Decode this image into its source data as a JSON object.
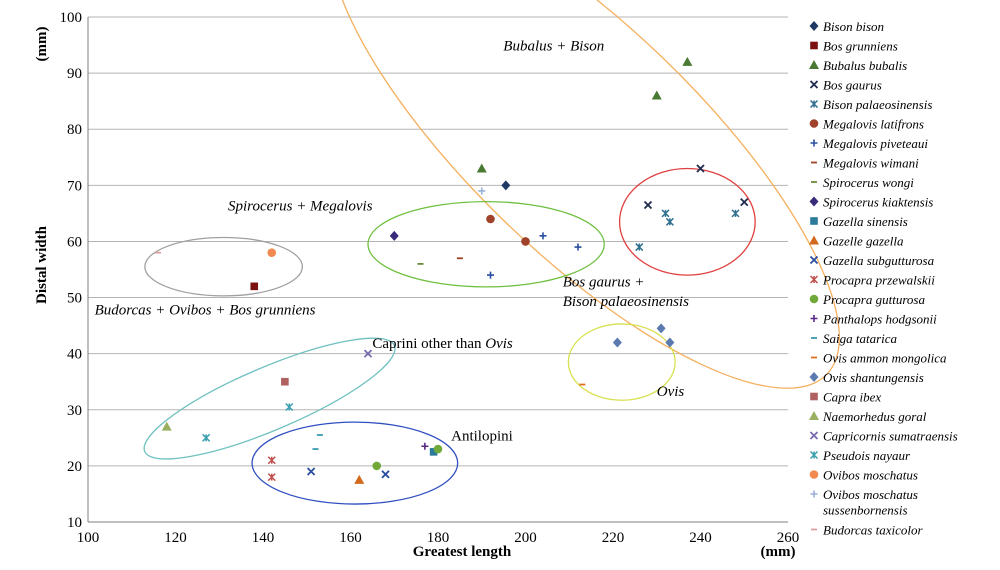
{
  "chart_data": {
    "type": "scatter",
    "xlabel": "Greatest length",
    "xunit": "(mm)",
    "ylabel": "Distal width",
    "yunit": "(mm)",
    "xlim": [
      100,
      260
    ],
    "ylim": [
      10,
      100
    ],
    "xticks": [
      100,
      120,
      140,
      160,
      180,
      200,
      220,
      240,
      260
    ],
    "yticks": [
      10,
      20,
      30,
      40,
      50,
      60,
      70,
      80,
      90,
      100
    ],
    "grid": "horizontal",
    "legend_position": "right",
    "series": [
      {
        "name": "Bison bison",
        "color": "#1f3864",
        "marker": "diamond",
        "points": [
          [
            195.5,
            70
          ]
        ]
      },
      {
        "name": "Bos grunniens",
        "color": "#7b1010",
        "marker": "square",
        "points": [
          [
            138,
            52
          ]
        ]
      },
      {
        "name": "Bubalus bubalis",
        "color": "#4a7a32",
        "marker": "triangle",
        "points": [
          [
            190,
            73
          ],
          [
            230,
            86
          ],
          [
            237,
            92
          ]
        ]
      },
      {
        "name": "Bos gaurus",
        "color": "#1f2a4f",
        "marker": "x",
        "points": [
          [
            228,
            66.5
          ],
          [
            240,
            73
          ],
          [
            250,
            67
          ]
        ]
      },
      {
        "name": "Bison palaeosinensis",
        "color": "#2f6f8f",
        "marker": "starx",
        "points": [
          [
            226,
            59
          ],
          [
            232,
            65
          ],
          [
            233,
            63.5
          ],
          [
            248,
            65
          ]
        ]
      },
      {
        "name": "Megalovis latifrons",
        "color": "#a0412a",
        "marker": "circle",
        "points": [
          [
            192,
            64
          ],
          [
            200,
            60
          ]
        ]
      },
      {
        "name": "Megalovis piveteaui",
        "color": "#2a4ea0",
        "marker": "plus",
        "points": [
          [
            192,
            54
          ],
          [
            204,
            61
          ],
          [
            212,
            59
          ]
        ]
      },
      {
        "name": "Megalovis wimani",
        "color": "#a0412a",
        "marker": "dash",
        "points": [
          [
            185,
            57
          ]
        ]
      },
      {
        "name": "Spirocerus wongi",
        "color": "#6a8a3a",
        "marker": "dash",
        "points": [
          [
            176,
            56
          ]
        ]
      },
      {
        "name": "Spirocerus kiaktensis",
        "color": "#3a2a7a",
        "marker": "diamond",
        "points": [
          [
            170,
            61
          ]
        ]
      },
      {
        "name": "Gazella sinensis",
        "color": "#2a7a9a",
        "marker": "square",
        "points": [
          [
            179,
            22.5
          ]
        ]
      },
      {
        "name": "Gazelle gazella",
        "color": "#d2691e",
        "marker": "triangle",
        "points": [
          [
            162,
            17.5
          ]
        ]
      },
      {
        "name": "Gazella subgutturosa",
        "color": "#2a4ea0",
        "marker": "x",
        "points": [
          [
            151,
            19
          ],
          [
            168,
            18.5
          ]
        ]
      },
      {
        "name": "Procapra przewalskii",
        "color": "#c0504d",
        "marker": "starx",
        "points": [
          [
            142,
            21
          ],
          [
            142,
            18
          ]
        ]
      },
      {
        "name": "Procapra gutturosa",
        "color": "#70a83a",
        "marker": "circle",
        "points": [
          [
            166,
            20
          ],
          [
            180,
            23
          ]
        ]
      },
      {
        "name": "Panthalops hodgsonii",
        "color": "#5a2a8a",
        "marker": "plus",
        "points": [
          [
            177,
            23.5
          ]
        ]
      },
      {
        "name": "Saiga tatarica",
        "color": "#3a9ab0",
        "marker": "dash",
        "points": [
          [
            152,
            23
          ],
          [
            153,
            25.5
          ]
        ]
      },
      {
        "name": "Ovis ammon mongolica",
        "color": "#e07020",
        "marker": "dash",
        "points": [
          [
            213,
            34.5
          ]
        ]
      },
      {
        "name": "Ovis shantungensis",
        "color": "#5a7ab0",
        "marker": "diamond",
        "points": [
          [
            221,
            42
          ],
          [
            231,
            44.5
          ],
          [
            233,
            42
          ]
        ]
      },
      {
        "name": "Capra ibex",
        "color": "#b06060",
        "marker": "square",
        "points": [
          [
            145,
            35
          ]
        ]
      },
      {
        "name": "Naemorhedus goral",
        "color": "#9ab060",
        "marker": "triangle",
        "points": [
          [
            118,
            27
          ]
        ]
      },
      {
        "name": "Capricornis sumatraensis",
        "color": "#7a6ab0",
        "marker": "x",
        "points": [
          [
            164,
            40
          ]
        ]
      },
      {
        "name": "Pseudois nayaur",
        "color": "#3aa0b0",
        "marker": "starx",
        "points": [
          [
            127,
            25
          ],
          [
            146,
            30.5
          ]
        ]
      },
      {
        "name": "Ovibos moschatus",
        "color": "#f08a50",
        "marker": "circle",
        "points": [
          [
            142,
            58
          ]
        ]
      },
      {
        "name": "Ovibos moschatus sussenbornensis",
        "color": "#9ab0d8",
        "marker": "plus",
        "points": [
          [
            190,
            69
          ]
        ]
      },
      {
        "name": "Budorcas taxicolor",
        "color": "#e0a0a0",
        "marker": "dash",
        "points": [
          [
            116,
            58
          ]
        ]
      }
    ],
    "groups": [
      {
        "label_parts": [
          {
            "text": "Bubalus + Bison",
            "italic": true
          }
        ],
        "color": "#f5b060",
        "ellipse": {
          "cx": 213.5,
          "cy": 78,
          "rx": 26,
          "ry": 60,
          "angle_deg": -46
        },
        "label_anchor": [
          218,
          94
        ],
        "label_align": "end"
      },
      {
        "label_parts": [
          {
            "text": "Spirocerus + Megalovis",
            "italic": true
          }
        ],
        "color": "#70c040",
        "ellipse": {
          "cx": 191,
          "cy": 59.5,
          "rx": 27,
          "ry": 7.6,
          "angle_deg": 0
        },
        "label_anchor": [
          132,
          65.5
        ],
        "label_align": "start"
      },
      {
        "label_parts": [
          {
            "text": "Bos gaurus +",
            "italic": true
          }
        ],
        "color": "#e04040",
        "ellipse": {
          "cx": 237,
          "cy": 63.5,
          "rx": 15.5,
          "ry": 9.5,
          "angle_deg": 0
        },
        "label_anchor": [
          208.5,
          52
        ],
        "label_align": "start"
      },
      {
        "label_parts": [
          {
            "text": "Bison palaeosinensis",
            "italic": true
          }
        ],
        "color": "#e04040",
        "ellipse": null,
        "label_anchor": [
          208.5,
          48.5
        ],
        "label_align": "start"
      },
      {
        "label_parts": [
          {
            "text": "Budorcas + Ovibos + Bos grunniens",
            "italic": true
          }
        ],
        "color": "#a0a0a0",
        "ellipse": {
          "cx": 131,
          "cy": 55.5,
          "rx": 18,
          "ry": 5.2,
          "angle_deg": 0
        },
        "label_anchor": [
          101.5,
          47
        ],
        "label_align": "start"
      },
      {
        "label_parts": [
          {
            "text": "Caprini other than ",
            "italic": false
          },
          {
            "text": "Ovis",
            "italic": true
          }
        ],
        "color": "#70c0c0",
        "ellipse": {
          "cx": 141.5,
          "cy": 32,
          "rx": 31,
          "ry": 5.6,
          "angle_deg": -23
        },
        "label_anchor": [
          165,
          41
        ],
        "label_align": "start"
      },
      {
        "label_parts": [
          {
            "text": "Ovis",
            "italic": true
          }
        ],
        "color": "#d8e050",
        "ellipse": {
          "cx": 222,
          "cy": 38.5,
          "rx": 12.2,
          "ry": 6.8,
          "angle_deg": 0
        },
        "label_anchor": [
          230,
          32.5
        ],
        "label_align": "start"
      },
      {
        "label_parts": [
          {
            "text": "Antilopini",
            "italic": false
          }
        ],
        "color": "#3050c0",
        "ellipse": {
          "cx": 161,
          "cy": 20.5,
          "rx": 23.5,
          "ry": 7.3,
          "angle_deg": 0
        },
        "label_anchor": [
          183,
          24.5
        ],
        "label_align": "start"
      }
    ]
  }
}
